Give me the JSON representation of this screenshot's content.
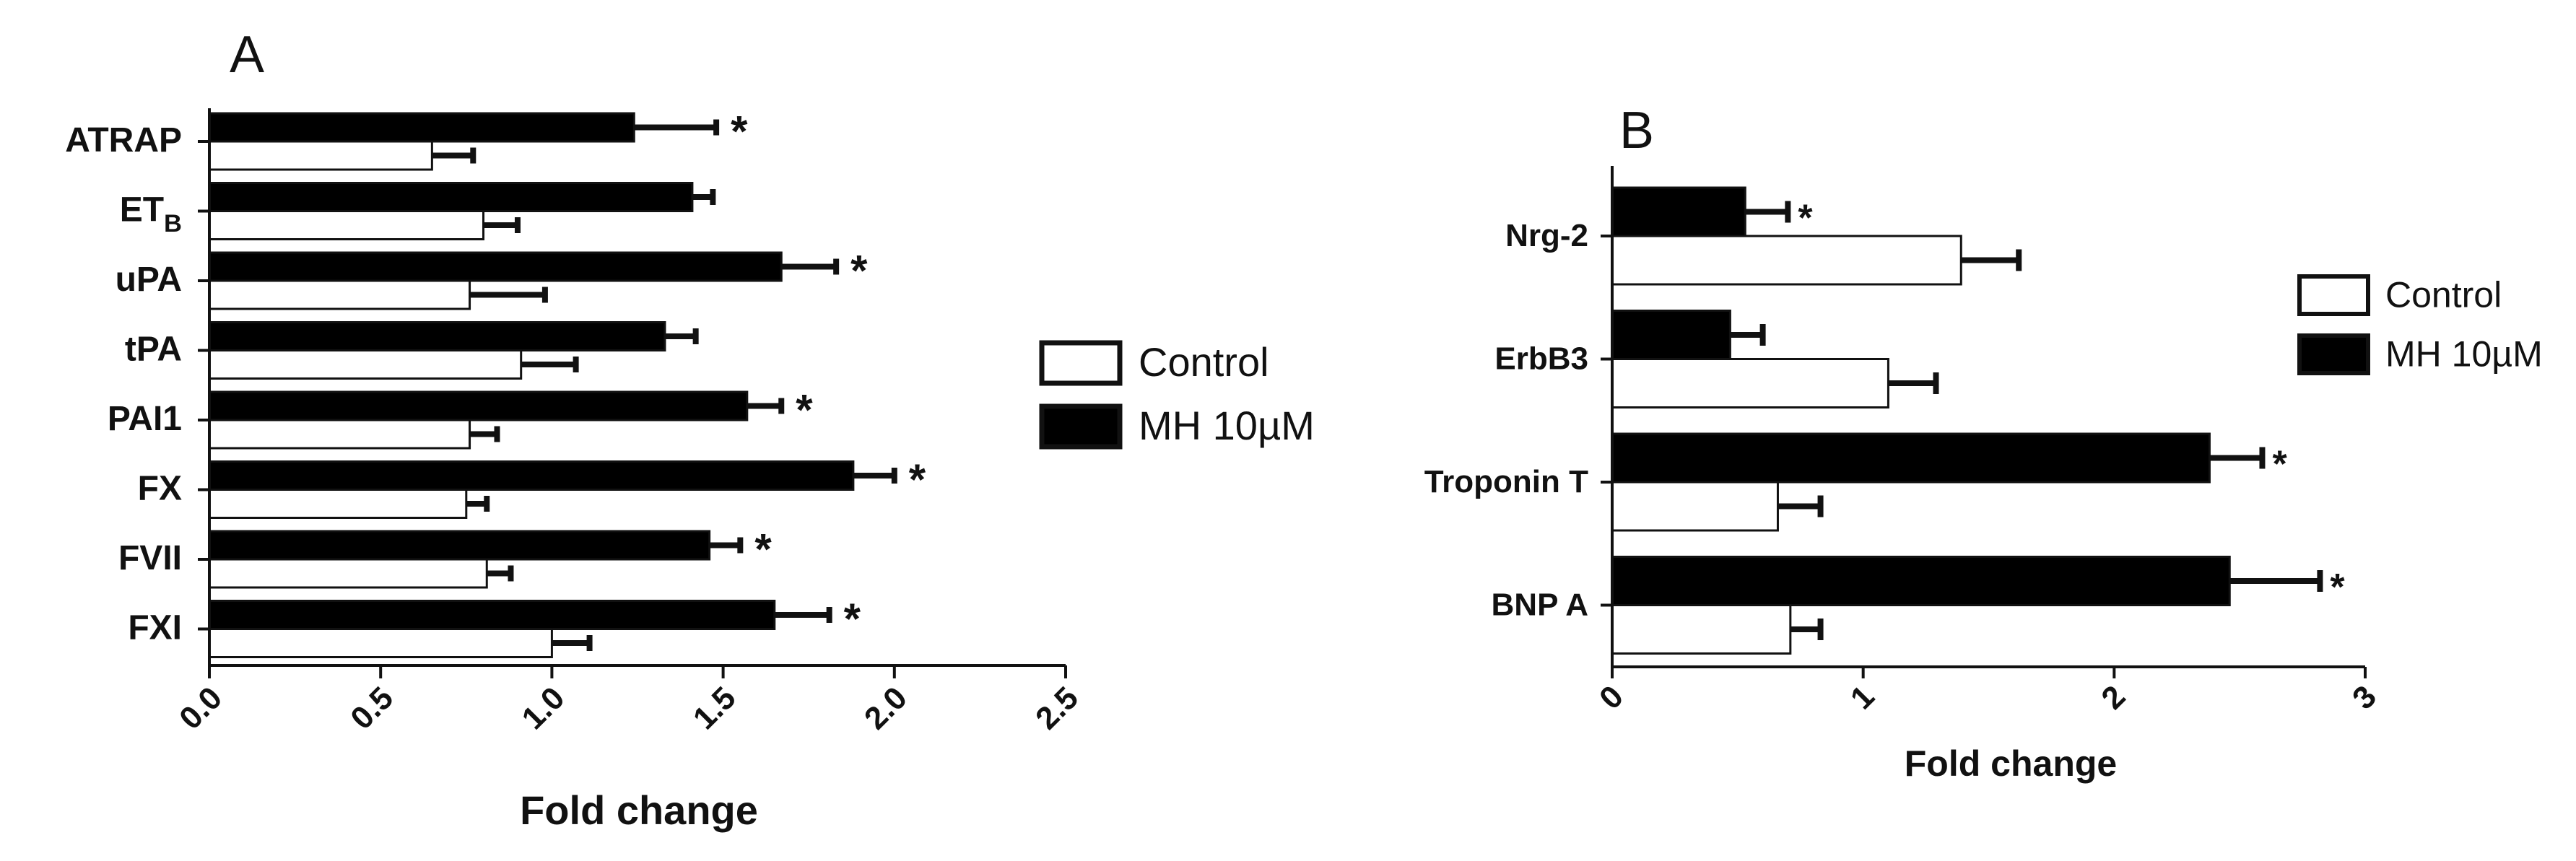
{
  "chart_data": [
    {
      "panel": "A",
      "type": "bar",
      "orientation": "horizontal",
      "categories": [
        "ATRAP",
        "ET_B",
        "uPA",
        "tPA",
        "PAI1",
        "FX",
        "FVII",
        "FXI"
      ],
      "category_display": [
        {
          "main": "ATRAP",
          "sub": ""
        },
        {
          "main": "ET",
          "sub": "B"
        },
        {
          "main": "uPA",
          "sub": ""
        },
        {
          "main": "tPA",
          "sub": ""
        },
        {
          "main": "PAI1",
          "sub": ""
        },
        {
          "main": "FX",
          "sub": ""
        },
        {
          "main": "FVII",
          "sub": ""
        },
        {
          "main": "FXI",
          "sub": ""
        }
      ],
      "series": [
        {
          "name": "MH 10µM",
          "fill": "#000000",
          "values": [
            1.24,
            1.41,
            1.67,
            1.33,
            1.57,
            1.88,
            1.46,
            1.65
          ],
          "errors": [
            0.24,
            0.06,
            0.16,
            0.09,
            0.1,
            0.12,
            0.09,
            0.16
          ]
        },
        {
          "name": "Control",
          "fill": "#ffffff",
          "values": [
            0.65,
            0.8,
            0.76,
            0.91,
            0.76,
            0.75,
            0.81,
            1.0
          ],
          "errors": [
            0.12,
            0.1,
            0.22,
            0.16,
            0.08,
            0.06,
            0.07,
            0.11
          ]
        }
      ],
      "significant": [
        true,
        false,
        true,
        false,
        true,
        true,
        true,
        true
      ],
      "significance_mark": "*",
      "xlabel": "Fold change",
      "ylabel": "",
      "xlim": [
        0,
        2.5
      ],
      "xticks": [
        "0.0",
        "0.5",
        "1.0",
        "1.5",
        "2.0",
        "2.5"
      ],
      "legend": "right"
    },
    {
      "panel": "B",
      "type": "bar",
      "orientation": "horizontal",
      "categories": [
        "Nrg-2",
        "ErbB3",
        "Troponin T",
        "BNP A"
      ],
      "category_display": [
        {
          "main": "Nrg-2",
          "sub": ""
        },
        {
          "main": "ErbB3",
          "sub": ""
        },
        {
          "main": "Troponin T",
          "sub": ""
        },
        {
          "main": "BNP A",
          "sub": ""
        }
      ],
      "series": [
        {
          "name": "MH 10µM",
          "fill": "#000000",
          "values": [
            0.53,
            0.47,
            2.38,
            2.46
          ],
          "errors": [
            0.17,
            0.13,
            0.21,
            0.36
          ]
        },
        {
          "name": "Control",
          "fill": "#ffffff",
          "values": [
            1.39,
            1.1,
            0.66,
            0.71
          ],
          "errors": [
            0.23,
            0.19,
            0.17,
            0.12
          ]
        }
      ],
      "significant": [
        true,
        false,
        true,
        true
      ],
      "significance_mark": "*",
      "xlabel": "Fold change",
      "ylabel": "",
      "xlim": [
        0,
        3
      ],
      "xticks": [
        "0",
        "1",
        "2",
        "3"
      ],
      "legend": "right"
    }
  ],
  "legend_labels": {
    "control": "Control",
    "mh": "MH 10µM"
  },
  "colors": {
    "axis": "#111111",
    "mh_fill": "#000000",
    "control_fill": "#ffffff"
  }
}
